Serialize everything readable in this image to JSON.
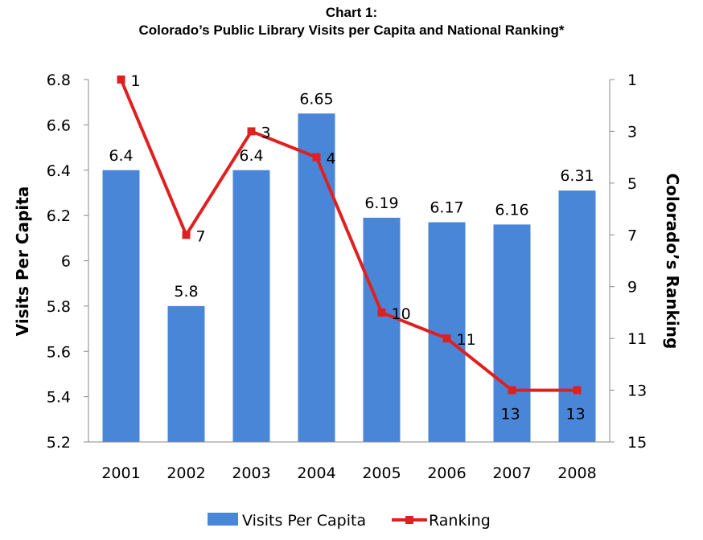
{
  "title_line1": "Chart 1:",
  "title_line2": "Colorado’s Public Library Visits per Capita and National Ranking*",
  "chart_data": {
    "type": "bar",
    "categories": [
      "2001",
      "2002",
      "2003",
      "2004",
      "2005",
      "2006",
      "2007",
      "2008"
    ],
    "series": [
      {
        "name": "Visits Per Capita",
        "type": "bar",
        "axis": "left",
        "color": "#4a86d8",
        "values": [
          6.4,
          5.8,
          6.4,
          6.65,
          6.19,
          6.17,
          6.16,
          6.31
        ],
        "labels": [
          "6.4",
          "5.8",
          "6.4",
          "6.65",
          "6.19",
          "6.17",
          "6.16",
          "6.31"
        ]
      },
      {
        "name": "Ranking",
        "type": "line",
        "axis": "right",
        "color": "#e02020",
        "marker": "square",
        "values": [
          1,
          7,
          3,
          4,
          10,
          11,
          13,
          13
        ],
        "labels": [
          "1",
          "7",
          "3",
          "4",
          "10",
          "11",
          "13",
          "13"
        ]
      }
    ],
    "ylabel": "Visits Per Capita",
    "y2label": "Colorado’s Ranking",
    "ylim": [
      5.2,
      6.8
    ],
    "yticks": [
      "6.8",
      "6.6",
      "6.4",
      "6.2",
      "6",
      "5.8",
      "5.6",
      "5.4",
      "5.2"
    ],
    "y2lim": [
      1,
      15
    ],
    "y2_reversed": true,
    "y2ticks": [
      "1",
      "3",
      "5",
      "7",
      "9",
      "11",
      "13",
      "15"
    ],
    "grid": false,
    "legend_position": "bottom"
  }
}
